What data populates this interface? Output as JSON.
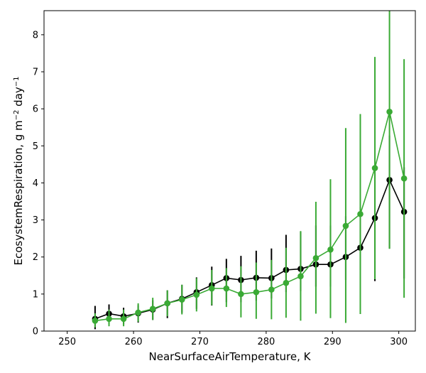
{
  "chart_data": {
    "type": "line",
    "xlabel": "NearSurfaceAirTemperature,  K",
    "ylabel_main": "EcosystemRespiration,  g m",
    "ylabel_sup1": "−2",
    "ylabel_mid": " day",
    "ylabel_sup2": "−1",
    "xlim": [
      246.5,
      302.5
    ],
    "ylim": [
      0,
      8.65
    ],
    "xticks": [
      250,
      260,
      270,
      280,
      290,
      300
    ],
    "yticks": [
      0,
      1,
      2,
      3,
      4,
      5,
      6,
      7,
      8
    ],
    "grid": false,
    "legend": "none",
    "x": [
      254.2,
      256.3,
      258.5,
      260.7,
      262.9,
      265.1,
      267.3,
      269.5,
      271.8,
      274.0,
      276.2,
      278.5,
      280.8,
      283.0,
      285.2,
      287.5,
      289.7,
      292.0,
      294.2,
      296.4,
      298.6,
      300.8
    ],
    "series": [
      {
        "color": "#000000",
        "values": [
          0.33,
          0.47,
          0.4,
          0.48,
          0.58,
          0.75,
          0.87,
          1.05,
          1.24,
          1.43,
          1.38,
          1.44,
          1.43,
          1.65,
          1.68,
          1.8,
          1.8,
          2.0,
          2.25,
          3.05,
          4.08,
          3.22
        ],
        "err_low": [
          0.28,
          0.28,
          0.22,
          0.25,
          0.28,
          0.4,
          0.38,
          0.45,
          0.55,
          0.65,
          0.6,
          0.62,
          0.55,
          0.6,
          0.6,
          0.6,
          0.6,
          0.62,
          0.6,
          1.7,
          1.85,
          1.8
        ],
        "err_high": [
          0.35,
          0.25,
          0.23,
          0.22,
          0.25,
          0.35,
          0.38,
          0.4,
          0.5,
          0.52,
          0.65,
          0.73,
          0.8,
          0.95,
          1.0,
          1.05,
          1.05,
          1.1,
          1.1,
          1.2,
          1.2,
          1.2
        ]
      },
      {
        "color": "#3aaa35",
        "values": [
          0.28,
          0.33,
          0.33,
          0.5,
          0.6,
          0.75,
          0.85,
          0.98,
          1.15,
          1.15,
          1.0,
          1.05,
          1.12,
          1.3,
          1.48,
          1.97,
          2.2,
          2.84,
          3.16,
          4.4,
          5.92,
          4.12
        ],
        "err_low": [
          0.18,
          0.2,
          0.2,
          0.25,
          0.3,
          0.35,
          0.4,
          0.45,
          0.45,
          0.5,
          0.63,
          0.72,
          0.8,
          0.94,
          1.2,
          1.5,
          1.85,
          2.62,
          2.7,
          3.0,
          3.7,
          3.22
        ],
        "err_high": [
          0.2,
          0.25,
          0.25,
          0.25,
          0.3,
          0.35,
          0.4,
          0.45,
          0.5,
          0.55,
          0.75,
          0.8,
          0.8,
          0.95,
          1.22,
          1.52,
          1.9,
          2.64,
          2.7,
          3.0,
          2.73,
          3.22
        ]
      }
    ]
  }
}
